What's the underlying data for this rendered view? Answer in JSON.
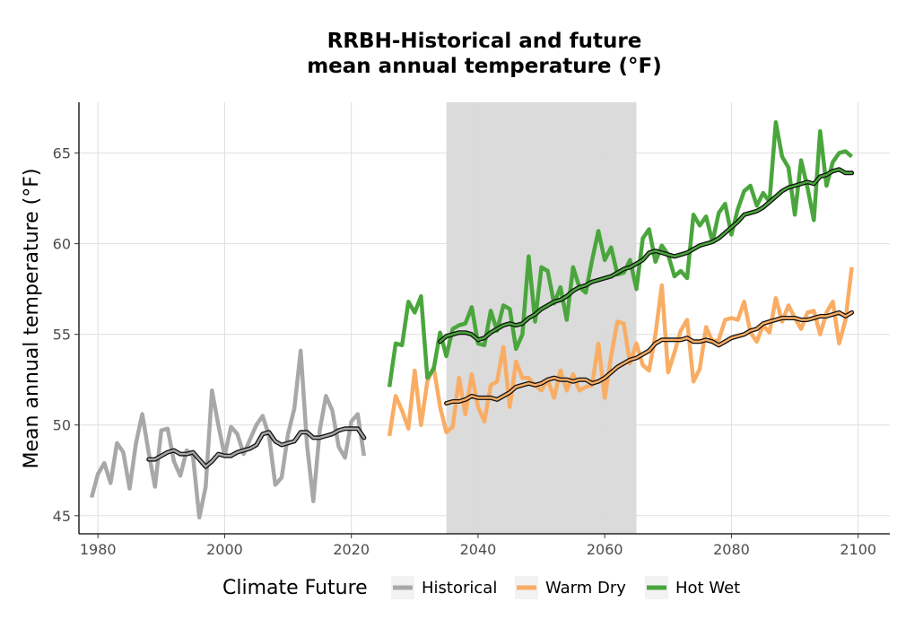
{
  "chart_data": {
    "type": "line",
    "title_line1": "RRBH-Historical and future",
    "title_line2": "mean annual temperature (°F)",
    "xlabel": "",
    "ylabel": "Mean annual temperature (°F)",
    "xlim": [
      1977,
      2105
    ],
    "ylim": [
      44,
      67.8
    ],
    "xticks": [
      1980,
      2000,
      2020,
      2040,
      2060,
      2080,
      2100
    ],
    "yticks": [
      45,
      50,
      55,
      60,
      65
    ],
    "grid": true,
    "shaded_period": [
      2035,
      2065
    ],
    "legend": {
      "title": "Climate Future",
      "position": "bottom",
      "items": [
        {
          "label": "Historical",
          "color": "#a8a8a8"
        },
        {
          "label": "Warm Dry",
          "color": "#f9ad64"
        },
        {
          "label": "Hot Wet",
          "color": "#4aa63c"
        }
      ]
    },
    "series": [
      {
        "name": "Historical",
        "color": "#a8a8a8",
        "x": [
          1979,
          1980,
          1981,
          1982,
          1983,
          1984,
          1985,
          1986,
          1987,
          1988,
          1989,
          1990,
          1991,
          1992,
          1993,
          1994,
          1995,
          1996,
          1997,
          1998,
          1999,
          2000,
          2001,
          2002,
          2003,
          2004,
          2005,
          2006,
          2007,
          2008,
          2009,
          2010,
          2011,
          2012,
          2013,
          2014,
          2015,
          2016,
          2017,
          2018,
          2019,
          2020,
          2021,
          2022
        ],
        "values": [
          46.0,
          47.3,
          47.9,
          46.8,
          49.0,
          48.5,
          46.5,
          49.0,
          50.6,
          48.5,
          46.6,
          49.7,
          49.8,
          48.0,
          47.2,
          48.6,
          48.3,
          44.9,
          46.6,
          51.9,
          50.0,
          48.3,
          49.9,
          49.5,
          48.4,
          49.2,
          50.0,
          50.5,
          49.4,
          46.7,
          47.1,
          49.5,
          50.9,
          54.1,
          48.9,
          45.8,
          49.7,
          51.6,
          50.8,
          48.8,
          48.2,
          50.2,
          50.6,
          48.3
        ]
      },
      {
        "name": "Historical smoothed",
        "color": "#222222",
        "x": [
          1988,
          1989,
          1990,
          1991,
          1992,
          1993,
          1994,
          1995,
          1996,
          1997,
          1998,
          1999,
          2000,
          2001,
          2002,
          2003,
          2004,
          2005,
          2006,
          2007,
          2008,
          2009,
          2010,
          2011,
          2012,
          2013,
          2014,
          2015,
          2016,
          2017,
          2018,
          2019,
          2020,
          2021,
          2022
        ],
        "values": [
          48.1,
          48.1,
          48.3,
          48.5,
          48.6,
          48.4,
          48.4,
          48.5,
          48.1,
          47.7,
          48.0,
          48.4,
          48.3,
          48.3,
          48.5,
          48.6,
          48.7,
          48.9,
          49.5,
          49.6,
          49.1,
          48.9,
          49.0,
          49.1,
          49.6,
          49.6,
          49.3,
          49.3,
          49.4,
          49.5,
          49.7,
          49.8,
          49.8,
          49.8,
          49.3
        ]
      },
      {
        "name": "Warm Dry",
        "color": "#f9ad64",
        "x": [
          2026,
          2027,
          2028,
          2029,
          2030,
          2031,
          2032,
          2033,
          2034,
          2035,
          2036,
          2037,
          2038,
          2039,
          2040,
          2041,
          2042,
          2043,
          2044,
          2045,
          2046,
          2047,
          2048,
          2049,
          2050,
          2051,
          2052,
          2053,
          2054,
          2055,
          2056,
          2057,
          2058,
          2059,
          2060,
          2061,
          2062,
          2063,
          2064,
          2065,
          2066,
          2067,
          2068,
          2069,
          2070,
          2071,
          2072,
          2073,
          2074,
          2075,
          2076,
          2077,
          2078,
          2079,
          2080,
          2081,
          2082,
          2083,
          2084,
          2085,
          2086,
          2087,
          2088,
          2089,
          2090,
          2091,
          2092,
          2093,
          2094,
          2095,
          2096,
          2097,
          2098,
          2099
        ],
        "values": [
          49.4,
          51.6,
          50.8,
          49.8,
          53.0,
          50.0,
          52.4,
          53.2,
          51.0,
          49.6,
          49.9,
          52.6,
          50.6,
          52.8,
          51.0,
          50.2,
          52.2,
          52.4,
          54.3,
          51.0,
          53.5,
          52.6,
          52.6,
          52.2,
          51.9,
          52.5,
          51.5,
          53.0,
          51.9,
          52.8,
          51.9,
          52.1,
          52.2,
          54.5,
          51.5,
          53.8,
          55.7,
          55.6,
          53.4,
          54.5,
          53.3,
          53.0,
          55.0,
          57.7,
          52.9,
          54.0,
          55.2,
          55.8,
          52.4,
          53.1,
          55.4,
          54.6,
          54.7,
          55.8,
          55.9,
          55.8,
          56.8,
          55.1,
          54.6,
          55.5,
          55.1,
          57.0,
          55.7,
          56.6,
          55.9,
          55.3,
          56.2,
          56.3,
          55.0,
          56.2,
          56.8,
          54.5,
          55.8,
          58.7
        ]
      },
      {
        "name": "Warm Dry smoothed",
        "color": "#222222",
        "x": [
          2035,
          2036,
          2037,
          2038,
          2039,
          2040,
          2041,
          2042,
          2043,
          2044,
          2045,
          2046,
          2047,
          2048,
          2049,
          2050,
          2051,
          2052,
          2053,
          2054,
          2055,
          2056,
          2057,
          2058,
          2059,
          2060,
          2061,
          2062,
          2063,
          2064,
          2065,
          2066,
          2067,
          2068,
          2069,
          2070,
          2071,
          2072,
          2073,
          2074,
          2075,
          2076,
          2077,
          2078,
          2079,
          2080,
          2081,
          2082,
          2083,
          2084,
          2085,
          2086,
          2087,
          2088,
          2089,
          2090,
          2091,
          2092,
          2093,
          2094,
          2095,
          2096,
          2097,
          2098,
          2099
        ],
        "values": [
          51.2,
          51.3,
          51.3,
          51.4,
          51.6,
          51.5,
          51.5,
          51.5,
          51.4,
          51.6,
          51.8,
          52.1,
          52.2,
          52.3,
          52.2,
          52.3,
          52.5,
          52.6,
          52.5,
          52.5,
          52.4,
          52.5,
          52.5,
          52.3,
          52.4,
          52.6,
          52.9,
          53.2,
          53.4,
          53.6,
          53.7,
          53.9,
          54.1,
          54.5,
          54.7,
          54.7,
          54.7,
          54.7,
          54.8,
          54.6,
          54.6,
          54.7,
          54.6,
          54.4,
          54.6,
          54.8,
          54.9,
          55.0,
          55.2,
          55.3,
          55.6,
          55.7,
          55.8,
          55.9,
          55.9,
          55.9,
          55.8,
          55.8,
          55.9,
          56.0,
          56.0,
          56.1,
          56.2,
          56.0,
          56.2
        ]
      },
      {
        "name": "Hot Wet",
        "color": "#4aa63c",
        "x": [
          2026,
          2027,
          2028,
          2029,
          2030,
          2031,
          2032,
          2033,
          2034,
          2035,
          2036,
          2037,
          2038,
          2039,
          2040,
          2041,
          2042,
          2043,
          2044,
          2045,
          2046,
          2047,
          2048,
          2049,
          2050,
          2051,
          2052,
          2053,
          2054,
          2055,
          2056,
          2057,
          2058,
          2059,
          2060,
          2061,
          2062,
          2063,
          2064,
          2065,
          2066,
          2067,
          2068,
          2069,
          2070,
          2071,
          2072,
          2073,
          2074,
          2075,
          2076,
          2077,
          2078,
          2079,
          2080,
          2081,
          2082,
          2083,
          2084,
          2085,
          2086,
          2087,
          2088,
          2089,
          2090,
          2091,
          2092,
          2093,
          2094,
          2095,
          2096,
          2097,
          2098,
          2099
        ],
        "values": [
          52.1,
          54.5,
          54.4,
          56.8,
          56.2,
          57.1,
          52.6,
          53.1,
          55.1,
          53.8,
          55.3,
          55.5,
          55.6,
          56.5,
          54.5,
          54.4,
          56.3,
          55.2,
          56.6,
          56.4,
          54.2,
          55.0,
          59.3,
          55.7,
          58.7,
          58.5,
          56.7,
          57.6,
          55.8,
          58.7,
          57.6,
          57.3,
          59.1,
          60.7,
          59.1,
          59.8,
          58.3,
          58.4,
          59.1,
          57.5,
          60.3,
          60.8,
          59.0,
          59.9,
          59.4,
          58.2,
          58.5,
          58.1,
          61.6,
          61.0,
          61.5,
          60.1,
          61.7,
          62.2,
          60.5,
          61.9,
          62.9,
          63.2,
          62.1,
          62.8,
          62.3,
          66.7,
          64.8,
          64.2,
          61.6,
          64.6,
          63.1,
          61.3,
          66.2,
          63.2,
          64.5,
          65.0,
          65.1,
          64.8
        ]
      },
      {
        "name": "Hot Wet smoothed",
        "color": "#222222",
        "x": [
          2034,
          2035,
          2036,
          2037,
          2038,
          2039,
          2040,
          2041,
          2042,
          2043,
          2044,
          2045,
          2046,
          2047,
          2048,
          2049,
          2050,
          2051,
          2052,
          2053,
          2054,
          2055,
          2056,
          2057,
          2058,
          2059,
          2060,
          2061,
          2062,
          2063,
          2064,
          2065,
          2066,
          2067,
          2068,
          2069,
          2070,
          2071,
          2072,
          2073,
          2074,
          2075,
          2076,
          2077,
          2078,
          2079,
          2080,
          2081,
          2082,
          2083,
          2084,
          2085,
          2086,
          2087,
          2088,
          2089,
          2090,
          2091,
          2092,
          2093,
          2094,
          2095,
          2096,
          2097,
          2098,
          2099
        ],
        "values": [
          54.6,
          54.9,
          55.0,
          55.1,
          55.1,
          55.0,
          54.7,
          54.8,
          55.1,
          55.3,
          55.5,
          55.6,
          55.5,
          55.6,
          55.9,
          56.1,
          56.4,
          56.6,
          56.8,
          56.9,
          57.1,
          57.4,
          57.6,
          57.7,
          57.9,
          58.0,
          58.1,
          58.2,
          58.4,
          58.6,
          58.7,
          58.9,
          59.1,
          59.5,
          59.6,
          59.5,
          59.4,
          59.3,
          59.4,
          59.5,
          59.7,
          59.9,
          60.0,
          60.1,
          60.3,
          60.6,
          60.9,
          61.2,
          61.6,
          61.7,
          61.8,
          62.0,
          62.3,
          62.6,
          62.9,
          63.1,
          63.2,
          63.3,
          63.4,
          63.3,
          63.7,
          63.8,
          64.0,
          64.1,
          63.9,
          63.9
        ]
      }
    ]
  }
}
